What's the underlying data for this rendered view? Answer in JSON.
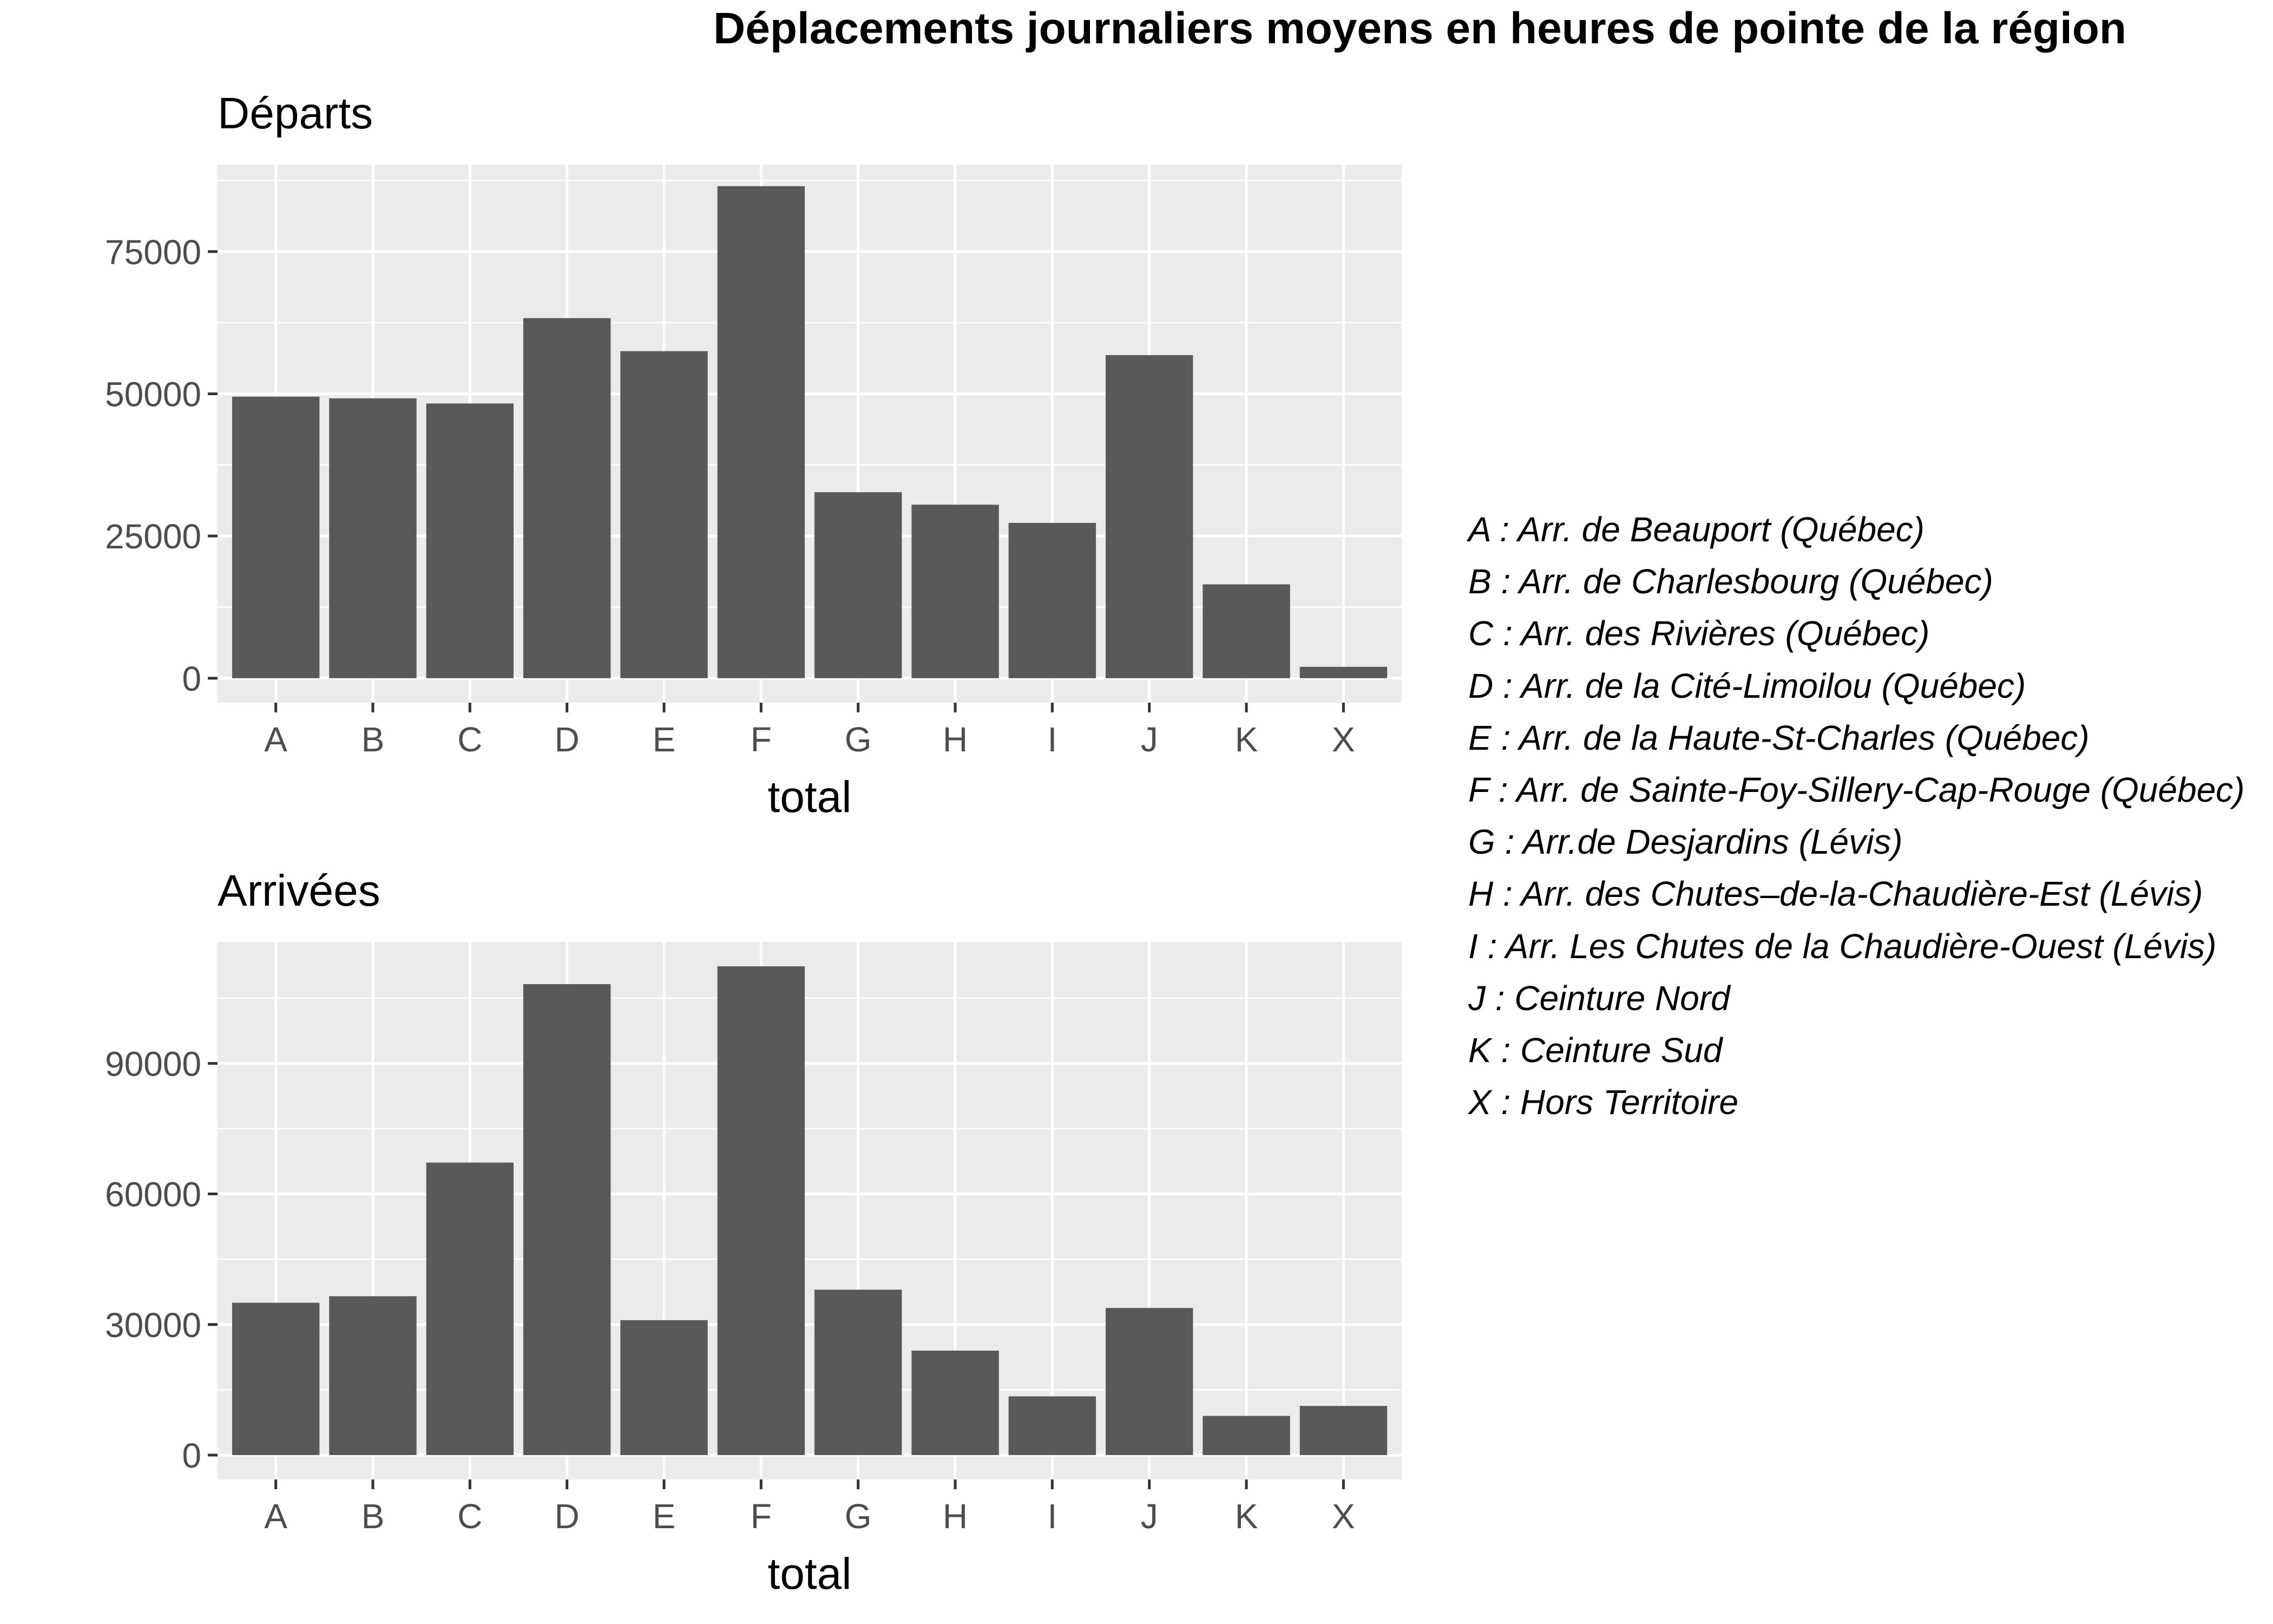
{
  "title": "Déplacements journaliers moyens en heures de pointe de la région",
  "chart_data": [
    {
      "type": "bar",
      "title": "Départs",
      "xlabel": "total",
      "ylabel": "",
      "categories": [
        "A",
        "B",
        "C",
        "D",
        "E",
        "F",
        "G",
        "H",
        "I",
        "J",
        "K",
        "X"
      ],
      "values": [
        49500,
        49200,
        48300,
        63300,
        57500,
        86500,
        32700,
        30500,
        27300,
        56800,
        16500,
        2000
      ],
      "yticks": [
        0,
        25000,
        50000,
        75000
      ],
      "ylim": [
        -4300,
        90300
      ],
      "grid": true,
      "bar_color": "#595959",
      "panel_bg": "#ebebeb"
    },
    {
      "type": "bar",
      "title": "Arrivées",
      "xlabel": "total",
      "ylabel": "",
      "categories": [
        "A",
        "B",
        "C",
        "D",
        "E",
        "F",
        "G",
        "H",
        "I",
        "J",
        "K",
        "X"
      ],
      "values": [
        35000,
        36500,
        67200,
        108200,
        31000,
        112300,
        38000,
        24000,
        13500,
        33800,
        9000,
        11300
      ],
      "yticks": [
        0,
        30000,
        60000,
        90000
      ],
      "ylim": [
        -5600,
        117900
      ],
      "grid": true,
      "bar_color": "#595959",
      "panel_bg": "#ebebeb"
    }
  ],
  "legend": [
    "A : Arr. de Beauport (Québec)",
    "B : Arr. de Charlesbourg (Québec)",
    "C : Arr. des Rivières (Québec)",
    "D : Arr. de la Cité-Limoilou (Québec)",
    "E : Arr. de la Haute-St-Charles (Québec)",
    "F : Arr. de Sainte-Foy-Sillery-Cap-Rouge (Québec)",
    "G : Arr.de Desjardins (Lévis)",
    "H : Arr. des Chutes–de-la-Chaudière-Est (Lévis)",
    "I : Arr. Les Chutes de la Chaudière-Ouest (Lévis)",
    "J : Ceinture Nord",
    "K : Ceinture Sud",
    "X : Hors Territoire"
  ]
}
